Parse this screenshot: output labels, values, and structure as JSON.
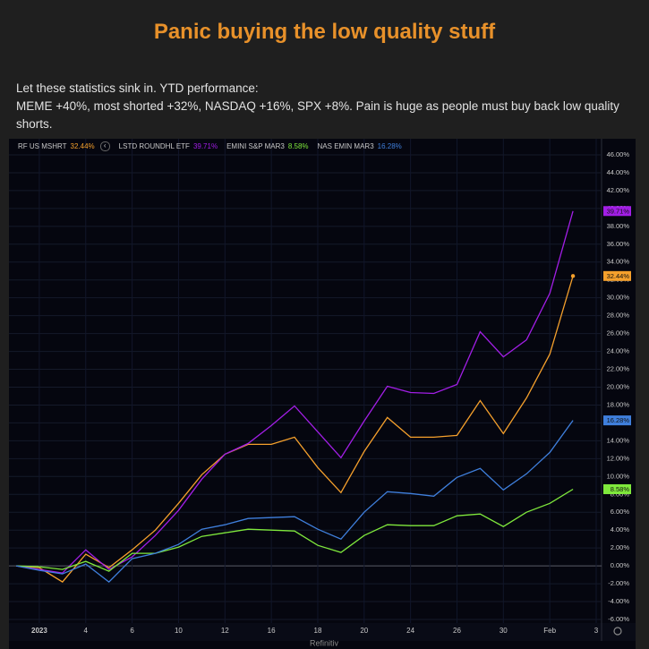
{
  "header": {
    "title": "Panic buying the low quality stuff"
  },
  "text": [
    "Let these statistics sink in. YTD performance:",
    "MEME +40%, most shorted +32%, NASDAQ +16%, SPX +8%. Pain is huge as people must buy back low quality shorts."
  ],
  "source": "Refinitiv",
  "chart_data": {
    "type": "line",
    "categories": [
      null,
      "2023",
      null,
      "4",
      null,
      "6",
      null,
      "10",
      null,
      "12",
      null,
      "16",
      null,
      "18",
      null,
      "20",
      null,
      "24",
      null,
      "26",
      null,
      "30",
      null,
      "Feb",
      null,
      "3"
    ],
    "series": [
      {
        "name": "RF US MSHRT",
        "color": "#f5a02c",
        "values": [
          0,
          -0.2,
          -1.8,
          1.3,
          -0.2,
          1.8,
          4.0,
          7.0,
          10.2,
          12.5,
          13.6,
          13.6,
          14.4,
          11.0,
          8.2,
          12.8,
          16.6,
          14.4,
          14.4,
          14.6,
          18.5,
          14.8,
          18.8,
          23.7,
          32.44,
          null
        ],
        "value_labels": [
          null,
          null,
          null,
          null,
          null,
          null,
          null,
          null,
          null,
          null,
          null,
          null,
          null,
          null,
          null,
          null,
          null,
          null,
          null,
          null,
          null,
          null,
          null,
          null,
          "32.44%",
          null
        ]
      },
      {
        "name": "LSTD ROUNDHL ETF",
        "color": "#a21ee6",
        "values": [
          0,
          -0.4,
          -0.8,
          1.8,
          -0.4,
          1.0,
          3.4,
          6.2,
          9.7,
          12.5,
          13.7,
          15.7,
          17.9,
          15.0,
          12.1,
          16.2,
          20.1,
          19.4,
          19.3,
          20.3,
          26.2,
          23.4,
          25.3,
          30.5,
          39.71,
          null
        ],
        "value_labels": [
          null,
          null,
          null,
          null,
          null,
          null,
          null,
          null,
          null,
          null,
          null,
          null,
          null,
          null,
          null,
          null,
          null,
          null,
          null,
          null,
          null,
          null,
          null,
          null,
          "39.71%",
          null
        ]
      },
      {
        "name": "EMINI S&P MAR3",
        "color": "#7fe83c",
        "values": [
          0,
          -0.1,
          -0.4,
          0.5,
          -0.6,
          1.4,
          1.4,
          2.1,
          3.3,
          3.7,
          4.1,
          4.0,
          3.9,
          2.3,
          1.5,
          3.4,
          4.6,
          4.5,
          4.5,
          5.6,
          5.8,
          4.4,
          6.0,
          7.0,
          8.58,
          null
        ],
        "value_labels": [
          null,
          null,
          null,
          null,
          null,
          null,
          null,
          null,
          null,
          null,
          null,
          null,
          null,
          null,
          null,
          null,
          null,
          null,
          null,
          null,
          null,
          null,
          null,
          null,
          "8.58%",
          null
        ]
      },
      {
        "name": "NAS EMIN MAR3",
        "color": "#3f7fdc",
        "values": [
          0,
          -0.5,
          -0.9,
          0.2,
          -1.8,
          0.8,
          1.4,
          2.4,
          4.1,
          4.6,
          5.3,
          5.4,
          5.5,
          4.1,
          3.0,
          6.0,
          8.3,
          8.1,
          7.8,
          9.9,
          10.9,
          8.5,
          10.3,
          12.7,
          16.28,
          null
        ],
        "value_labels": [
          null,
          null,
          null,
          null,
          null,
          null,
          null,
          null,
          null,
          null,
          null,
          null,
          null,
          null,
          null,
          null,
          null,
          null,
          null,
          null,
          null,
          null,
          null,
          null,
          "16.28%",
          null
        ]
      }
    ],
    "ylim": [
      -6.4,
      46.8
    ],
    "yticks": [
      {
        "value": -6,
        "label": "-6.00%"
      },
      {
        "value": -4,
        "label": "-4.00%"
      },
      {
        "value": -2,
        "label": "-2.00%"
      },
      {
        "value": 0,
        "label": "0.00%"
      },
      {
        "value": 2,
        "label": "2.00%"
      },
      {
        "value": 4,
        "label": "4.00%"
      },
      {
        "value": 6,
        "label": "6.00%"
      },
      {
        "value": 8,
        "label": "8.00%"
      },
      {
        "value": 10,
        "label": "10.00%"
      },
      {
        "value": 12,
        "label": "12.00%"
      },
      {
        "value": 14,
        "label": "14.00%"
      },
      {
        "value": 16,
        "label": "16.00%"
      },
      {
        "value": 18,
        "label": "18.00%"
      },
      {
        "value": 20,
        "label": "20.00%"
      },
      {
        "value": 22,
        "label": "22.00%"
      },
      {
        "value": 24,
        "label": "24.00%"
      },
      {
        "value": 26,
        "label": "26.00%"
      },
      {
        "value": 28,
        "label": "28.00%"
      },
      {
        "value": 30,
        "label": "30.00%"
      },
      {
        "value": 32,
        "label": "32.00%"
      },
      {
        "value": 34,
        "label": "34.00%"
      },
      {
        "value": 36,
        "label": "36.00%"
      },
      {
        "value": 38,
        "label": "38.00%"
      },
      {
        "value": 40,
        "label": "40.00%"
      },
      {
        "value": 42,
        "label": "42.00%"
      },
      {
        "value": 44,
        "label": "44.00%"
      },
      {
        "value": 46,
        "label": "46.00%"
      }
    ],
    "grid": true
  }
}
